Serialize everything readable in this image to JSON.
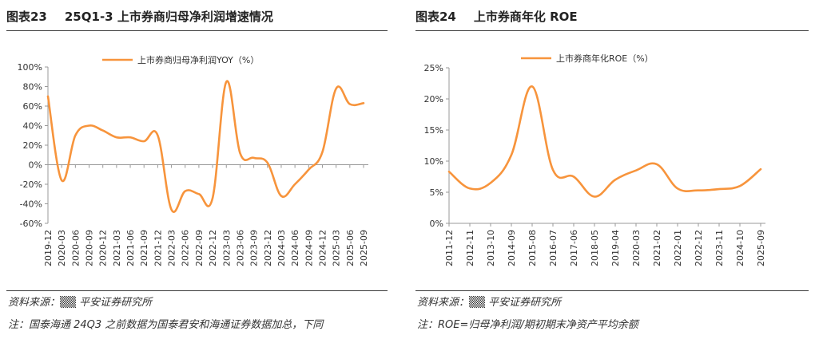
{
  "left": {
    "title_num": "图表23",
    "title_text": "25Q1-3 上市券商归母净利润增速情况",
    "source": "资料来源：▒▒ 平安证券研究所",
    "note": "注：国泰海通 24Q3 之前数据为国泰君安和海通证券数据加总，下同",
    "chart_data": {
      "type": "line",
      "title": "",
      "xlabel": "",
      "ylabel": "",
      "legend": "top-center",
      "grid": false,
      "ylim": [
        -60,
        100
      ],
      "yticks": [
        "100%",
        "80%",
        "60%",
        "40%",
        "20%",
        "0%",
        "-20%",
        "-40%",
        "-60%"
      ],
      "yticks_values": [
        100,
        80,
        60,
        40,
        20,
        0,
        -20,
        -40,
        -60
      ],
      "categories": [
        "2019-12",
        "2020-03",
        "2020-06",
        "2020-09",
        "2020-12",
        "2021-03",
        "2021-06",
        "2021-09",
        "2021-12",
        "2022-03",
        "2022-06",
        "2022-09",
        "2022-12",
        "2023-03",
        "2023-06",
        "2023-09",
        "2023-12",
        "2024-03",
        "2024-06",
        "2024-09",
        "2024-12",
        "2025-03",
        "2025-06",
        "2025-09"
      ],
      "series": [
        {
          "name": "上市券商归母净利润YOY（%）",
          "color": "#F7943C",
          "values": [
            70,
            -16,
            30,
            40,
            35,
            28,
            28,
            24,
            30,
            -46,
            -27,
            -30,
            -34,
            85,
            12,
            7,
            2,
            -32,
            -20,
            -5,
            13,
            78,
            62,
            63
          ]
        }
      ]
    }
  },
  "right": {
    "title_num": "图表24",
    "title_text": "上市券商年化 ROE",
    "source": "资料来源：▒▒ 平安证券研究所",
    "note": "注：ROE=归母净利润/期初期末净资产平均余额",
    "chart_data": {
      "type": "line",
      "title": "",
      "xlabel": "",
      "ylabel": "",
      "legend": "top-center",
      "grid": false,
      "ylim": [
        0,
        25
      ],
      "yticks": [
        "25%",
        "20%",
        "15%",
        "10%",
        "5%",
        "0%"
      ],
      "yticks_values": [
        25,
        20,
        15,
        10,
        5,
        0
      ],
      "categories": [
        "2011-12",
        "2012-11",
        "2013-10",
        "2014-09",
        "2015-08",
        "2016-07",
        "2017-06",
        "2018-05",
        "2019-04",
        "2020-03",
        "2021-02",
        "2022-01",
        "2022-12",
        "2023-11",
        "2024-10",
        "2025-09"
      ],
      "series": [
        {
          "name": "上市券商年化ROE（%）",
          "color": "#F7943C",
          "values": [
            8.3,
            5.6,
            6.5,
            11.0,
            22.0,
            8.6,
            7.5,
            4.3,
            7.0,
            8.5,
            9.5,
            5.6,
            5.3,
            5.5,
            6.0,
            8.7
          ]
        }
      ]
    }
  }
}
